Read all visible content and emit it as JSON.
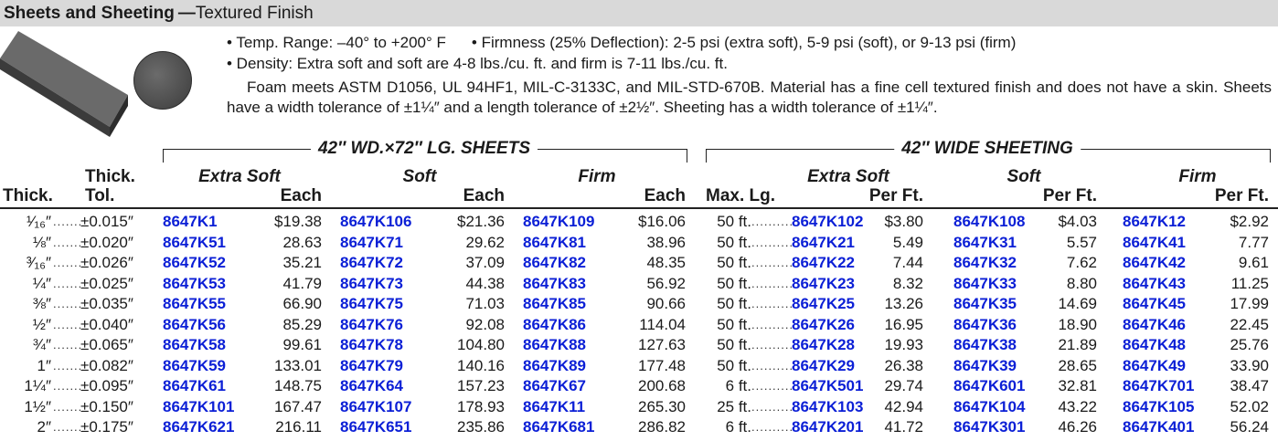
{
  "header": {
    "title_bold": "Sheets and Sheeting",
    "title_dash": "—",
    "title_thin": "Textured Finish"
  },
  "features": {
    "bullet1": "• Temp. Range: –40° to +200° F",
    "bullet2": "• Firmness (25% Deflection): 2-5 psi (extra soft), 5-9 psi (soft), or 9-13 psi (firm)",
    "bullet3": "• Density: Extra soft and soft are 4-8 lbs./cu. ft. and firm is 7-11 lbs./cu. ft."
  },
  "description": "Foam meets ASTM D1056, UL 94HF1, MIL-C-3133C, and MIL-STD-670B. Material has a fine cell textured finish and does not have a skin. Sheets have a width tolerance of ±1¼″ and a length tolerance of ±2½″. Sheeting has a width tolerance of ±1¼″.",
  "table": {
    "group_sheets": "42″ WD.×72″ LG. SHEETS",
    "group_sheeting": "42″ WIDE SHEETING",
    "headers": {
      "thick": "Thick.",
      "thick_tol_1": "Thick.",
      "thick_tol_2": "Tol.",
      "extra_soft": "Extra Soft",
      "soft": "Soft",
      "firm": "Firm",
      "each": "Each",
      "max_lg": "Max. Lg.",
      "per_ft": "Per Ft."
    },
    "rows": [
      {
        "thick": "¹⁄₁₆″",
        "tol": "±0.015″",
        "es_part": "8647K1",
        "es_price": "$19.38",
        "s_part": "8647K106",
        "s_price": "$21.36",
        "f_part": "8647K109",
        "f_price": "$16.06",
        "max_lg": "50 ft.",
        "wes_part": "8647K102",
        "wes_price": "$3.80",
        "ws_part": "8647K108",
        "ws_price": "$4.03",
        "wf_part": "8647K12",
        "wf_price": "$2.92"
      },
      {
        "thick": "⅛″",
        "tol": "±0.020″",
        "es_part": "8647K51",
        "es_price": "28.63",
        "s_part": "8647K71",
        "s_price": "29.62",
        "f_part": "8647K81",
        "f_price": "38.96",
        "max_lg": "50 ft.",
        "wes_part": "8647K21",
        "wes_price": "5.49",
        "ws_part": "8647K31",
        "ws_price": "5.57",
        "wf_part": "8647K41",
        "wf_price": "7.77"
      },
      {
        "thick": "³⁄₁₆″",
        "tol": "±0.026″",
        "es_part": "8647K52",
        "es_price": "35.21",
        "s_part": "8647K72",
        "s_price": "37.09",
        "f_part": "8647K82",
        "f_price": "48.35",
        "max_lg": "50 ft.",
        "wes_part": "8647K22",
        "wes_price": "7.44",
        "ws_part": "8647K32",
        "ws_price": "7.62",
        "wf_part": "8647K42",
        "wf_price": "9.61"
      },
      {
        "thick": "¼″",
        "tol": "±0.025″",
        "es_part": "8647K53",
        "es_price": "41.79",
        "s_part": "8647K73",
        "s_price": "44.38",
        "f_part": "8647K83",
        "f_price": "56.92",
        "max_lg": "50 ft.",
        "wes_part": "8647K23",
        "wes_price": "8.32",
        "ws_part": "8647K33",
        "ws_price": "8.80",
        "wf_part": "8647K43",
        "wf_price": "11.25"
      },
      {
        "thick": "⅜″",
        "tol": "±0.035″",
        "es_part": "8647K55",
        "es_price": "66.90",
        "s_part": "8647K75",
        "s_price": "71.03",
        "f_part": "8647K85",
        "f_price": "90.66",
        "max_lg": "50 ft.",
        "wes_part": "8647K25",
        "wes_price": "13.26",
        "ws_part": "8647K35",
        "ws_price": "14.69",
        "wf_part": "8647K45",
        "wf_price": "17.99"
      },
      {
        "thick": "½″",
        "tol": "±0.040″",
        "es_part": "8647K56",
        "es_price": "85.29",
        "s_part": "8647K76",
        "s_price": "92.08",
        "f_part": "8647K86",
        "f_price": "114.04",
        "max_lg": "50 ft.",
        "wes_part": "8647K26",
        "wes_price": "16.95",
        "ws_part": "8647K36",
        "ws_price": "18.90",
        "wf_part": "8647K46",
        "wf_price": "22.45"
      },
      {
        "thick": "¾″",
        "tol": "±0.065″",
        "es_part": "8647K58",
        "es_price": "99.61",
        "s_part": "8647K78",
        "s_price": "104.80",
        "f_part": "8647K88",
        "f_price": "127.63",
        "max_lg": "50 ft.",
        "wes_part": "8647K28",
        "wes_price": "19.93",
        "ws_part": "8647K38",
        "ws_price": "21.89",
        "wf_part": "8647K48",
        "wf_price": "25.76"
      },
      {
        "thick": "1″",
        "tol": "±0.082″",
        "es_part": "8647K59",
        "es_price": "133.01",
        "s_part": "8647K79",
        "s_price": "140.16",
        "f_part": "8647K89",
        "f_price": "177.48",
        "max_lg": "50 ft.",
        "wes_part": "8647K29",
        "wes_price": "26.38",
        "ws_part": "8647K39",
        "ws_price": "28.65",
        "wf_part": "8647K49",
        "wf_price": "33.90"
      },
      {
        "thick": "1¼″",
        "tol": "±0.095″",
        "es_part": "8647K61",
        "es_price": "148.75",
        "s_part": "8647K64",
        "s_price": "157.23",
        "f_part": "8647K67",
        "f_price": "200.68",
        "max_lg": "6 ft.",
        "wes_part": "8647K501",
        "wes_price": "29.74",
        "ws_part": "8647K601",
        "ws_price": "32.81",
        "wf_part": "8647K701",
        "wf_price": "38.47"
      },
      {
        "thick": "1½″",
        "tol": "±0.150″",
        "es_part": "8647K101",
        "es_price": "167.47",
        "s_part": "8647K107",
        "s_price": "178.93",
        "f_part": "8647K11",
        "f_price": "265.30",
        "max_lg": "25 ft.",
        "wes_part": "8647K103",
        "wes_price": "42.94",
        "ws_part": "8647K104",
        "ws_price": "43.22",
        "wf_part": "8647K105",
        "wf_price": "52.02"
      },
      {
        "thick": "2″",
        "tol": "±0.175″",
        "es_part": "8647K621",
        "es_price": "216.11",
        "s_part": "8647K651",
        "s_price": "235.86",
        "f_part": "8647K681",
        "f_price": "286.82",
        "max_lg": "6 ft.",
        "wes_part": "8647K201",
        "wes_price": "41.72",
        "ws_part": "8647K301",
        "ws_price": "46.26",
        "wf_part": "8647K401",
        "wf_price": "56.24"
      }
    ]
  },
  "colors": {
    "part_number": "#0b1fd6",
    "title_bar": "#d9d9d9",
    "foam_swatch": "#4a4a4a"
  }
}
